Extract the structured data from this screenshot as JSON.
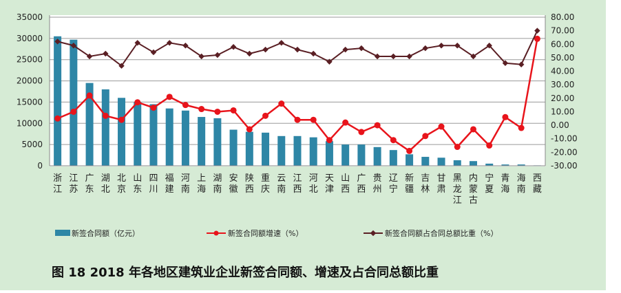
{
  "chart_data": {
    "type": "bar+line",
    "title": "",
    "caption": "图 18   2018 年各地区建筑业企业新签合同额、增速及占合同总额比重",
    "categories": [
      "浙江",
      "江苏",
      "广东",
      "湖北",
      "北京",
      "山东",
      "四川",
      "福建",
      "河南",
      "上海",
      "湖南",
      "安徽",
      "陕西",
      "重庆",
      "云南",
      "江西",
      "河北",
      "天津",
      "山西",
      "广西",
      "贵州",
      "辽宁",
      "新疆",
      "吉林",
      "甘肃",
      "黑龙江",
      "内蒙古",
      "宁夏",
      "青海",
      "海南",
      "西藏"
    ],
    "left_axis": {
      "range": [
        0,
        35000
      ],
      "ticks": [
        "0",
        "5000",
        "10000",
        "15000",
        "20000",
        "25000",
        "30000",
        "35000"
      ]
    },
    "right_axis": {
      "range": [
        -30,
        80
      ],
      "ticks": [
        "-30.00",
        "-20.00",
        "-10.00",
        "0.00",
        "10.00",
        "20.00",
        "30.00",
        "40.00",
        "50.00",
        "60.00",
        "70.00",
        "80.00"
      ]
    },
    "grid": true,
    "legend_position": "bottom",
    "series": [
      {
        "name": "新签合同额（亿元）",
        "type": "bar",
        "axis": "left",
        "color": "#2e86a6",
        "values": [
          30500,
          29700,
          19500,
          18000,
          16000,
          15000,
          14500,
          13500,
          13000,
          11500,
          11200,
          8500,
          8000,
          7800,
          7000,
          7000,
          6700,
          5800,
          5000,
          5000,
          4400,
          3700,
          2700,
          2100,
          1900,
          1300,
          1100,
          500,
          300,
          300,
          100
        ]
      },
      {
        "name": "新签合同额增速（%）",
        "type": "line",
        "axis": "right",
        "color": "#e8141b",
        "values": [
          5,
          10,
          22,
          7,
          4,
          17,
          13,
          21,
          15,
          12,
          10,
          11,
          -3,
          7,
          16,
          4,
          4,
          -11,
          2,
          -5,
          0,
          -11,
          -19,
          -8,
          -1,
          -16,
          -3,
          -15,
          6,
          -2,
          64
        ]
      },
      {
        "name": "新签合同额占合同总额比重（%）",
        "type": "line",
        "axis": "right",
        "color": "#5a1f24",
        "values": [
          62,
          59,
          51,
          53,
          44,
          61,
          54,
          61,
          59,
          51,
          52,
          58,
          53,
          56,
          61,
          56,
          53,
          47,
          56,
          57,
          51,
          51,
          51,
          57,
          59,
          59,
          51,
          59,
          46,
          45,
          70
        ]
      }
    ]
  }
}
